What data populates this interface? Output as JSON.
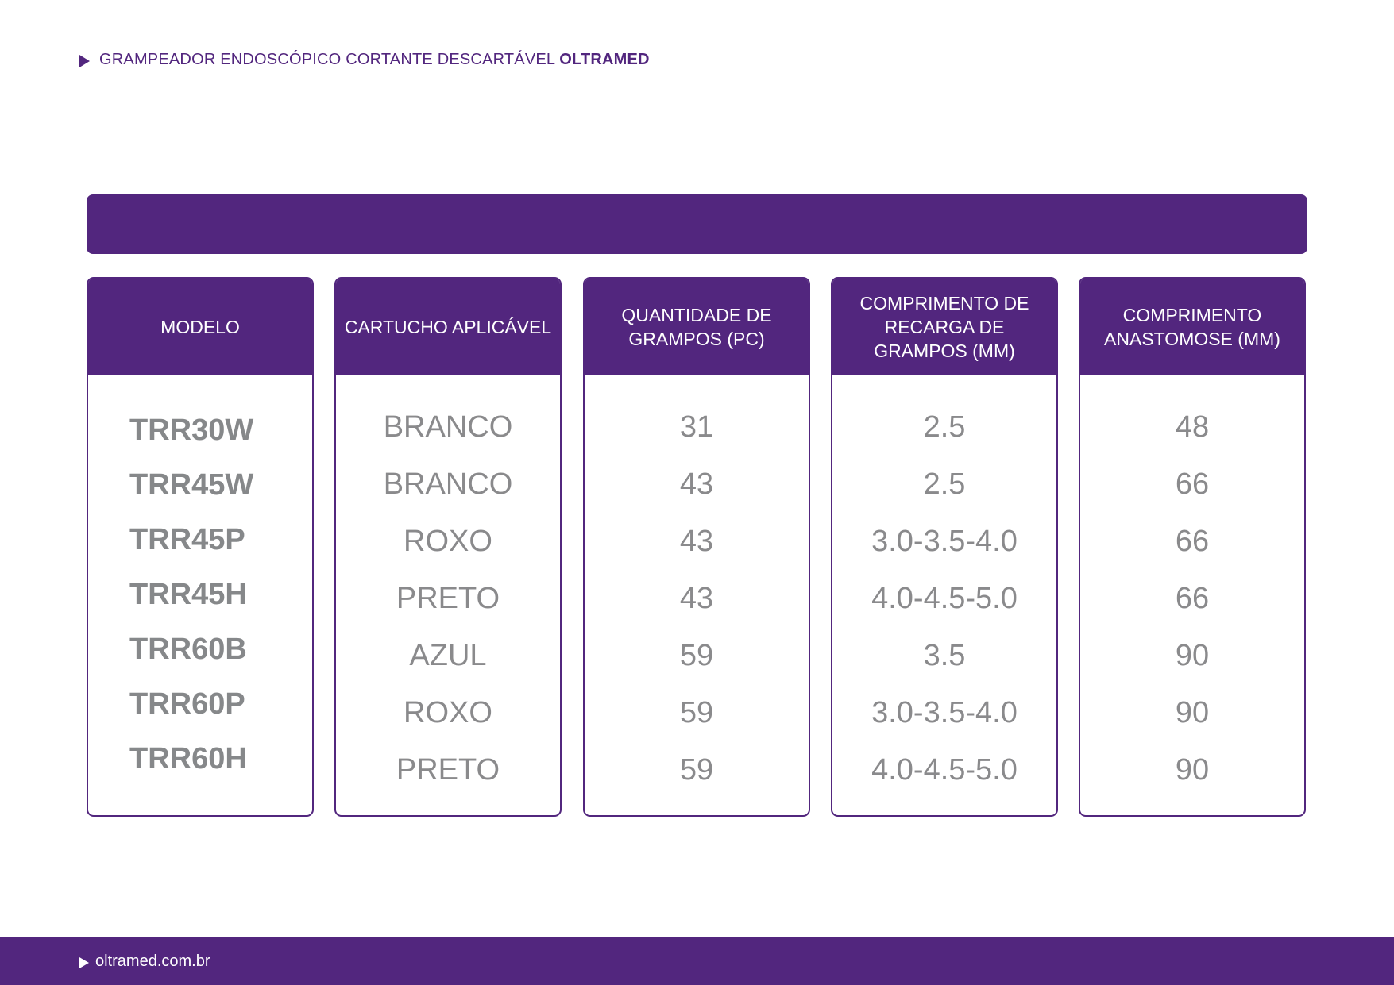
{
  "header": {
    "title": "GRAMPEADOR ENDOSCÓPICO CORTANTE DESCARTÁVEL",
    "brand": "OLTRAMED"
  },
  "table": {
    "columns": [
      {
        "header": "MODELO",
        "values": [
          "TRR30W",
          "TRR45W",
          "TRR45P",
          "TRR45H",
          "TRR60B",
          "TRR60P",
          "TRR60H"
        ]
      },
      {
        "header": "CARTUCHO APLICÁVEL",
        "values": [
          "BRANCO",
          "BRANCO",
          "ROXO",
          "PRETO",
          "AZUL",
          "ROXO",
          "PRETO"
        ]
      },
      {
        "header": "QUANTIDADE DE GRAMPOS (PC)",
        "values": [
          "31",
          "43",
          "43",
          "43",
          "59",
          "59",
          "59"
        ]
      },
      {
        "header": "COMPRIMENTO DE RECARGA DE GRAMPOS (MM)",
        "values": [
          "2.5",
          "2.5",
          "3.0-3.5-4.0",
          "4.0-4.5-5.0",
          "3.5",
          "3.0-3.5-4.0",
          "4.0-4.5-5.0"
        ]
      },
      {
        "header": "COMPRIMENTO ANASTOMOSE (MM)",
        "values": [
          "48",
          "66",
          "66",
          "66",
          "90",
          "90",
          "90"
        ]
      }
    ]
  },
  "footer": {
    "url": "oltramed.com.br"
  },
  "colors": {
    "brand_purple": "#52267e",
    "text_gray": "#8a8a8c"
  }
}
